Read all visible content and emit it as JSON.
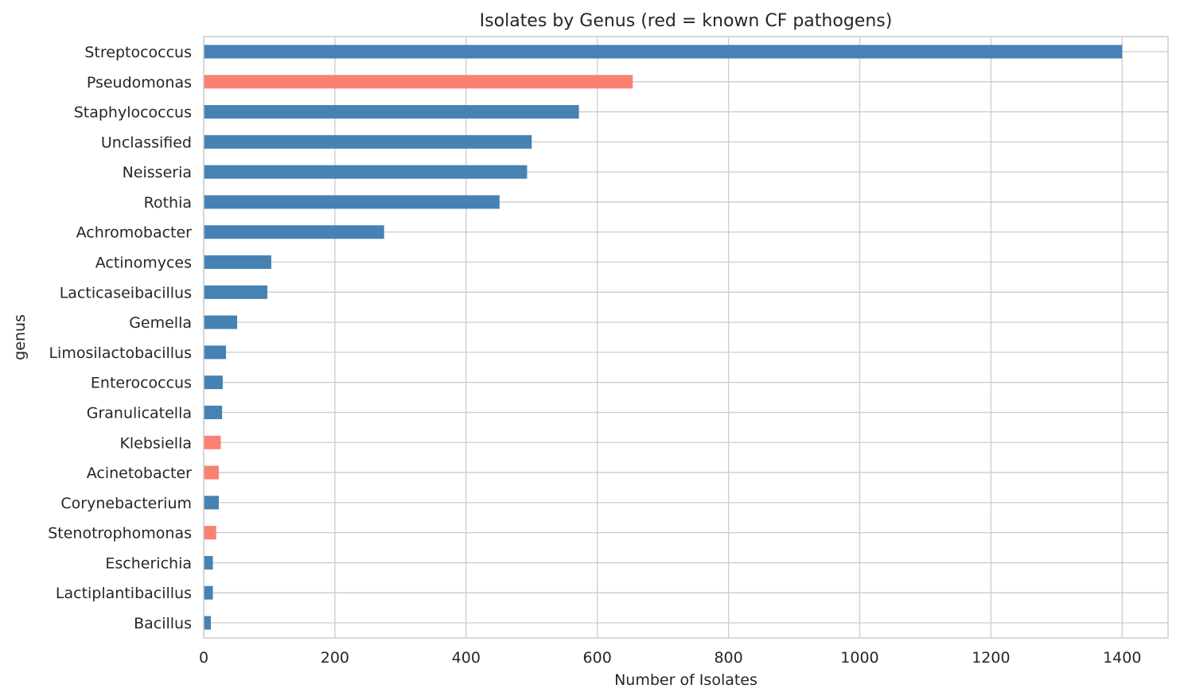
{
  "chart_data": {
    "type": "bar",
    "orientation": "horizontal",
    "title": "Isolates by Genus (red = known CF pathogens)",
    "xlabel": "Number of Isolates",
    "ylabel": "genus",
    "xlim": [
      0,
      1470
    ],
    "xticks": [
      0,
      200,
      400,
      600,
      800,
      1000,
      1200,
      1400
    ],
    "grid": true,
    "colors": {
      "default": "#4682b4",
      "pathogen": "#fa8072"
    },
    "categories": [
      "Streptococcus",
      "Pseudomonas",
      "Staphylococcus",
      "Unclassified",
      "Neisseria",
      "Rothia",
      "Achromobacter",
      "Actinomyces",
      "Lacticaseibacillus",
      "Gemella",
      "Limosilactobacillus",
      "Enterococcus",
      "Granulicatella",
      "Klebsiella",
      "Acinetobacter",
      "Corynebacterium",
      "Stenotrophomonas",
      "Escherichia",
      "Lactiplantibacillus",
      "Bacillus"
    ],
    "values": [
      1400,
      654,
      572,
      500,
      493,
      451,
      275,
      103,
      97,
      51,
      34,
      29,
      28,
      26,
      23,
      23,
      19,
      14,
      14,
      11
    ],
    "pathogen": [
      false,
      true,
      false,
      false,
      false,
      false,
      false,
      false,
      false,
      false,
      false,
      false,
      false,
      true,
      true,
      false,
      true,
      false,
      false,
      false
    ]
  }
}
